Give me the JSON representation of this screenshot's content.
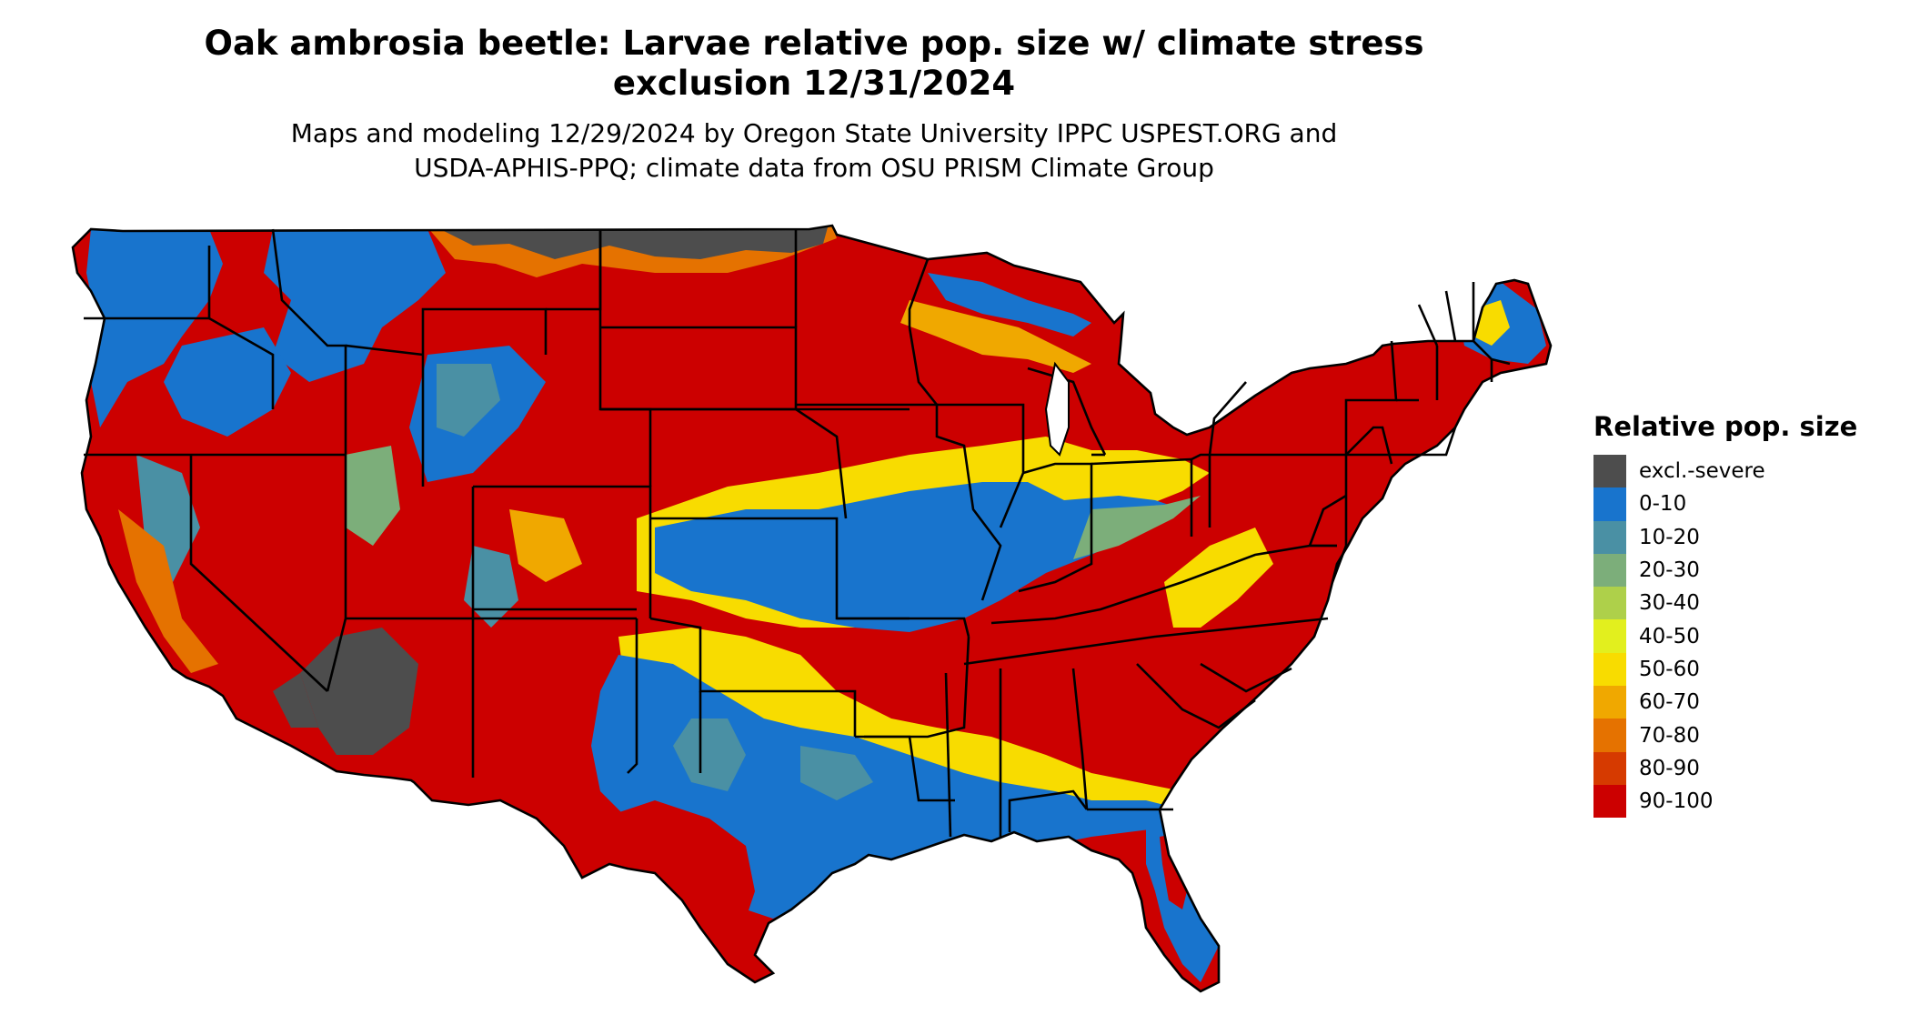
{
  "title_line1": "Oak ambrosia beetle: Larvae relative pop. size w/ climate stress",
  "title_line2": "exclusion 12/31/2024",
  "subtitle_line1": "Maps and modeling 12/29/2024 by Oregon State University IPPC USPEST.ORG and",
  "subtitle_line2": "USDA-APHIS-PPQ; climate data from OSU PRISM Climate Group",
  "legend": {
    "title": "Relative pop. size",
    "items": [
      {
        "label": "excl.-severe",
        "color": "#4d4d4d"
      },
      {
        "label": "0-10",
        "color": "#1874cd"
      },
      {
        "label": "10-20",
        "color": "#4a90a4"
      },
      {
        "label": "20-30",
        "color": "#7cae7a"
      },
      {
        "label": "30-40",
        "color": "#aed04a"
      },
      {
        "label": "40-50",
        "color": "#e2ef1e"
      },
      {
        "label": "50-60",
        "color": "#f8dc00"
      },
      {
        "label": "60-70",
        "color": "#f0a800"
      },
      {
        "label": "70-80",
        "color": "#e57200"
      },
      {
        "label": "80-90",
        "color": "#d63a00"
      },
      {
        "label": "90-100",
        "color": "#cc0000"
      }
    ]
  }
}
